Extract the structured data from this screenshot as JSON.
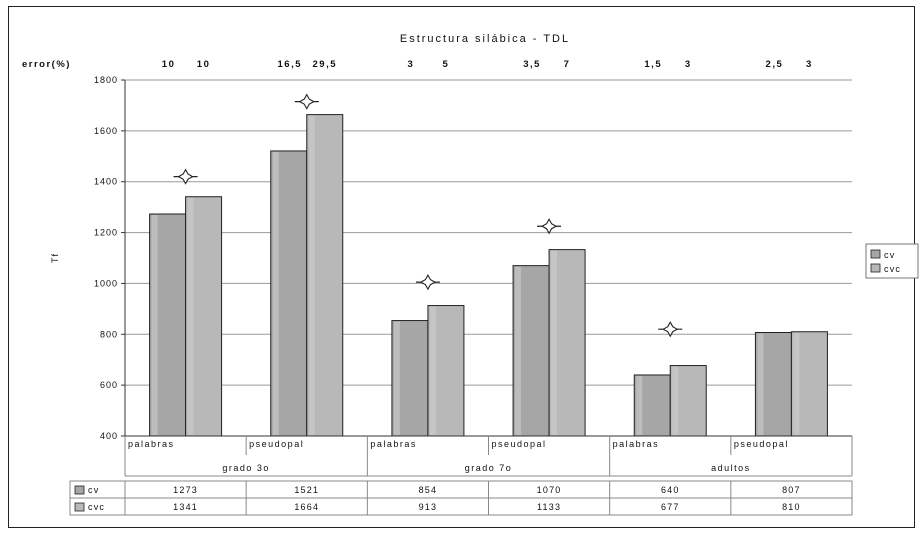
{
  "chart_data": {
    "type": "bar",
    "title": "Estructura silábica - TDL",
    "ylabel": "Tf",
    "ylim": [
      400,
      1800
    ],
    "yticks": [
      400,
      600,
      800,
      1000,
      1200,
      1400,
      1600,
      1800
    ],
    "grid": true,
    "legend_position": "right",
    "error_label": "error(%)",
    "categories": [
      "palabras",
      "pseudopal",
      "palabras",
      "pseudopal",
      "palabras",
      "pseudopal"
    ],
    "groups": [
      "grado 3o",
      "grado 7o",
      "adultos"
    ],
    "errors": [
      [
        "10",
        "10"
      ],
      [
        "16,5",
        "29,5"
      ],
      [
        "3",
        "5"
      ],
      [
        "3,5",
        "7"
      ],
      [
        "1,5",
        "3"
      ],
      [
        "2,5",
        "3"
      ]
    ],
    "series": [
      {
        "name": "cv",
        "values": [
          1273,
          1521,
          854,
          1070,
          640,
          807
        ],
        "color": "#a6a6a6"
      },
      {
        "name": "cvc",
        "values": [
          1341,
          1664,
          913,
          1133,
          677,
          810
        ],
        "color": "#b8b8b8"
      }
    ],
    "significance_markers": [
      {
        "category_index": 0,
        "y": 1420
      },
      {
        "category_index": 1,
        "y": 1715
      },
      {
        "category_index": 2,
        "y": 1005
      },
      {
        "category_index": 3,
        "y": 1225
      },
      {
        "category_index": 4,
        "y": 820
      }
    ]
  }
}
